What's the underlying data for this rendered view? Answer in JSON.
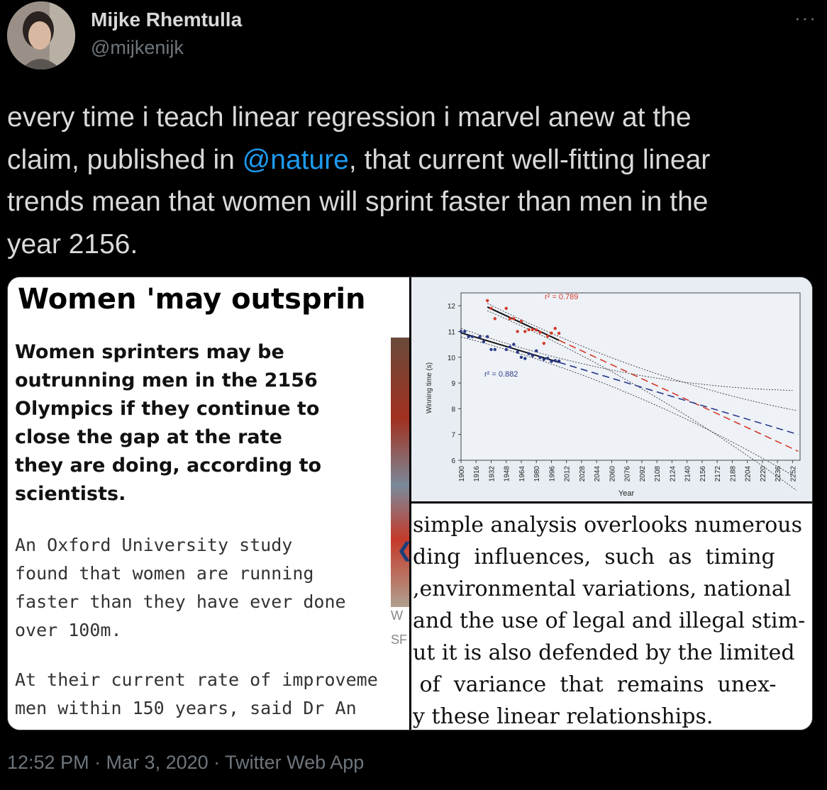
{
  "user": {
    "name": "Mijke Rhemtulla",
    "handle": "@mijkenijk"
  },
  "more_label": "···",
  "tweet": {
    "text_before": "every time i teach linear regression i marvel anew at the\nclaim, published in ",
    "mention": "@nature",
    "text_after": ", that current well-fitting linear\ntrends mean that women will sprint faster than men in the\nyear 2156."
  },
  "news": {
    "title": "Women 'may outsprin",
    "lead": "Women sprinters may be\noutrunning men in the 2156\nOlympics if they continue to\nclose the gap at the rate\nthey are doing, according to\nscientists.",
    "body": "An Oxford University study\nfound that women are running\nfaster than they have ever done\nover 100m.",
    "body2": "At their current rate of improveme\nmen within 150 years, said Dr An",
    "photo_caption_1": "W",
    "photo_caption_2": "SF"
  },
  "chart_data": {
    "type": "scatter",
    "xlabel": "Year",
    "ylabel": "Winning time (s)",
    "ylim": [
      6,
      12.5
    ],
    "xlim": [
      1900,
      2260
    ],
    "x_ticks": [
      1900,
      1916,
      1932,
      1948,
      1964,
      1980,
      1996,
      2012,
      2028,
      2044,
      2060,
      2076,
      2092,
      2108,
      2124,
      2140,
      2156,
      2172,
      2188,
      2204,
      2220,
      2236,
      2252
    ],
    "y_ticks": [
      6,
      7,
      8,
      9,
      10,
      11,
      12
    ],
    "series": [
      {
        "color": "#d43a2a",
        "annotation": "r² = 0.789",
        "points": [
          [
            1928,
            12.2
          ],
          [
            1932,
            11.9
          ],
          [
            1936,
            11.5
          ],
          [
            1948,
            11.9
          ],
          [
            1952,
            11.5
          ],
          [
            1956,
            11.5
          ],
          [
            1960,
            11.0
          ],
          [
            1964,
            11.4
          ],
          [
            1968,
            11.0
          ],
          [
            1972,
            11.07
          ],
          [
            1976,
            11.08
          ],
          [
            1980,
            11.06
          ],
          [
            1984,
            10.97
          ],
          [
            1988,
            10.54
          ],
          [
            1992,
            10.82
          ],
          [
            1996,
            10.94
          ],
          [
            2000,
            11.12
          ],
          [
            2004,
            10.93
          ]
        ],
        "fit_start": [
          1928,
          11.95
        ],
        "fit_end": [
          2258,
          6.35
        ]
      },
      {
        "color": "#2a3a8a",
        "annotation": "r² = 0.882",
        "points": [
          [
            1900,
            11.0
          ],
          [
            1904,
            11.0
          ],
          [
            1908,
            10.8
          ],
          [
            1912,
            10.8
          ],
          [
            1920,
            10.8
          ],
          [
            1924,
            10.6
          ],
          [
            1928,
            10.8
          ],
          [
            1932,
            10.3
          ],
          [
            1936,
            10.3
          ],
          [
            1948,
            10.3
          ],
          [
            1952,
            10.4
          ],
          [
            1956,
            10.5
          ],
          [
            1960,
            10.2
          ],
          [
            1964,
            10.0
          ],
          [
            1968,
            9.95
          ],
          [
            1972,
            10.14
          ],
          [
            1976,
            10.06
          ],
          [
            1980,
            10.25
          ],
          [
            1984,
            9.99
          ],
          [
            1988,
            9.92
          ],
          [
            1992,
            9.96
          ],
          [
            1996,
            9.84
          ],
          [
            2000,
            9.87
          ],
          [
            2004,
            9.85
          ]
        ],
        "fit_start": [
          1900,
          10.95
        ],
        "fit_end": [
          2258,
          7.0
        ]
      }
    ]
  },
  "paper": {
    "lines": [
      "simple analysis overlooks numerous",
      "ding  influences,  such  as  timing",
      ",environmental variations, national",
      "and the use of legal and illegal stim-",
      "ut it is also defended by the limited",
      " of  variance  that  remains  unex-",
      "y these linear relationships."
    ]
  },
  "timestamp": "12:52 PM · Mar 3, 2020 · Twitter Web App"
}
